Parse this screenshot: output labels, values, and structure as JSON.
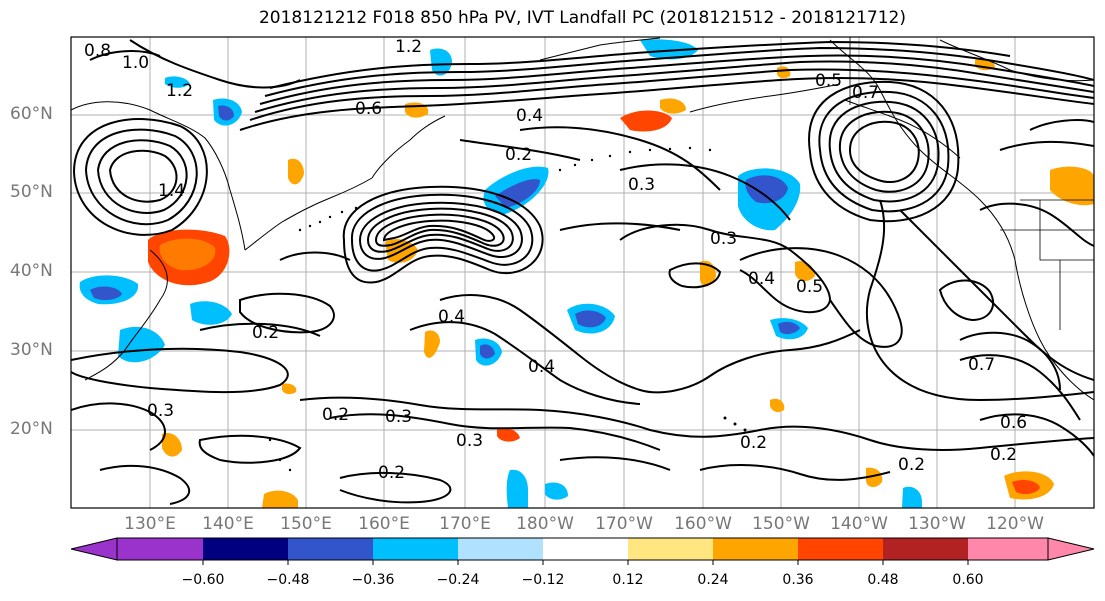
{
  "title": "2018121212 F018 850 hPa PV, IVT Landfall PC (2018121512 - 2018121712)",
  "lat_labels": [
    "60°N",
    "50°N",
    "40°N",
    "30°N",
    "20°N"
  ],
  "lon_labels": [
    "130°E",
    "140°E",
    "150°E",
    "160°E",
    "170°E",
    "180°W",
    "170°W",
    "160°W",
    "150°W",
    "140°W",
    "130°W",
    "120°W"
  ],
  "colorbar": {
    "ticks": [
      "−0.60",
      "−0.48",
      "−0.36",
      "−0.24",
      "−0.12",
      "0.12",
      "0.24",
      "0.36",
      "0.48",
      "0.60"
    ],
    "colors": [
      "#9933cc",
      "#000080",
      "#3355cc",
      "#00bfff",
      "#b0e2ff",
      "#ffffff",
      "#ffe680",
      "#ffa500",
      "#ff4500",
      "#b22222",
      "#ff88aa"
    ]
  },
  "contour_labels": [
    "0.8",
    "1.0",
    "1.2",
    "1.4",
    "0.6",
    "0.4",
    "0.2",
    "0.3",
    "0.5",
    "0.7",
    "1.2",
    "0.4",
    "0.3",
    "0.2",
    "0.3",
    "0.2",
    "0.4",
    "0.5",
    "0.7",
    "0.6",
    "0.2",
    "0.3",
    "0.2",
    "0.4",
    "0.3",
    "0.2",
    "0.2"
  ]
}
